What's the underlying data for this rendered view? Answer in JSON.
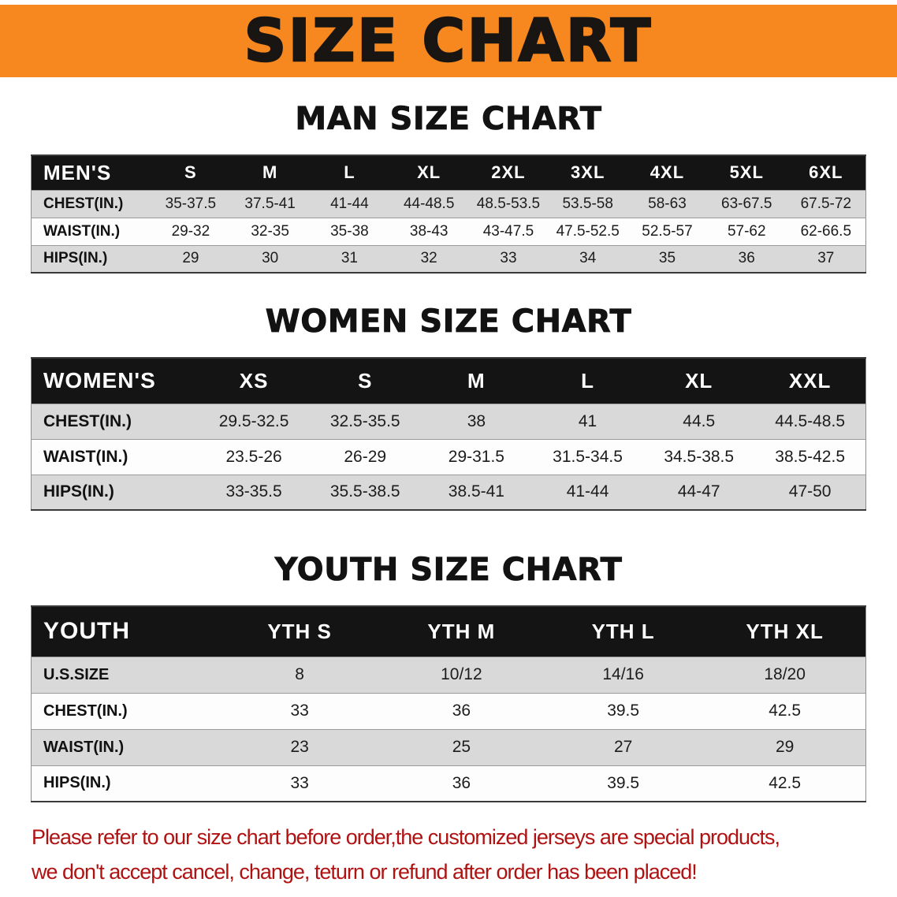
{
  "banner": {
    "title": "SIZE CHART",
    "bg_color": "#f6881f",
    "text_color": "#181512"
  },
  "sections": [
    {
      "id": "men",
      "heading": "MAN SIZE CHART",
      "table": {
        "header": [
          "MEN'S",
          "S",
          "M",
          "L",
          "XL",
          "2XL",
          "3XL",
          "4XL",
          "5XL",
          "6XL"
        ],
        "rows": [
          [
            "CHEST(IN.)",
            "35-37.5",
            "37.5-41",
            "41-44",
            "44-48.5",
            "48.5-53.5",
            "53.5-58",
            "58-63",
            "63-67.5",
            "67.5-72"
          ],
          [
            "WAIST(IN.)",
            "29-32",
            "32-35",
            "35-38",
            "38-43",
            "43-47.5",
            "47.5-52.5",
            "52.5-57",
            "57-62",
            "62-66.5"
          ],
          [
            "HIPS(IN.)",
            "29",
            "30",
            "31",
            "32",
            "33",
            "34",
            "35",
            "36",
            "37"
          ]
        ]
      }
    },
    {
      "id": "women",
      "heading": "WOMEN SIZE CHART",
      "table": {
        "header": [
          "WOMEN'S",
          "XS",
          "S",
          "M",
          "L",
          "XL",
          "XXL"
        ],
        "rows": [
          [
            "CHEST(IN.)",
            "29.5-32.5",
            "32.5-35.5",
            "38",
            "41",
            "44.5",
            "44.5-48.5"
          ],
          [
            "WAIST(IN.)",
            "23.5-26",
            "26-29",
            "29-31.5",
            "31.5-34.5",
            "34.5-38.5",
            "38.5-42.5"
          ],
          [
            "HIPS(IN.)",
            "33-35.5",
            "35.5-38.5",
            "38.5-41",
            "41-44",
            "44-47",
            "47-50"
          ]
        ]
      }
    },
    {
      "id": "youth",
      "heading": "YOUTH SIZE CHART",
      "table": {
        "header": [
          "YOUTH",
          "YTH S",
          "YTH M",
          "YTH L",
          "YTH XL"
        ],
        "rows": [
          [
            "U.S.SIZE",
            "8",
            "10/12",
            "14/16",
            "18/20"
          ],
          [
            "CHEST(IN.)",
            "33",
            "36",
            "39.5",
            "42.5"
          ],
          [
            "WAIST(IN.)",
            "23",
            "25",
            "27",
            "29"
          ],
          [
            "HIPS(IN.)",
            "33",
            "36",
            "39.5",
            "42.5"
          ]
        ]
      }
    }
  ],
  "disclaimer": {
    "line1": "Please refer to our size chart before order,the customized jerseys are special products,",
    "line2": "we don't accept cancel, change, teturn or refund after order has been placed!",
    "text_color": "#b01212"
  }
}
